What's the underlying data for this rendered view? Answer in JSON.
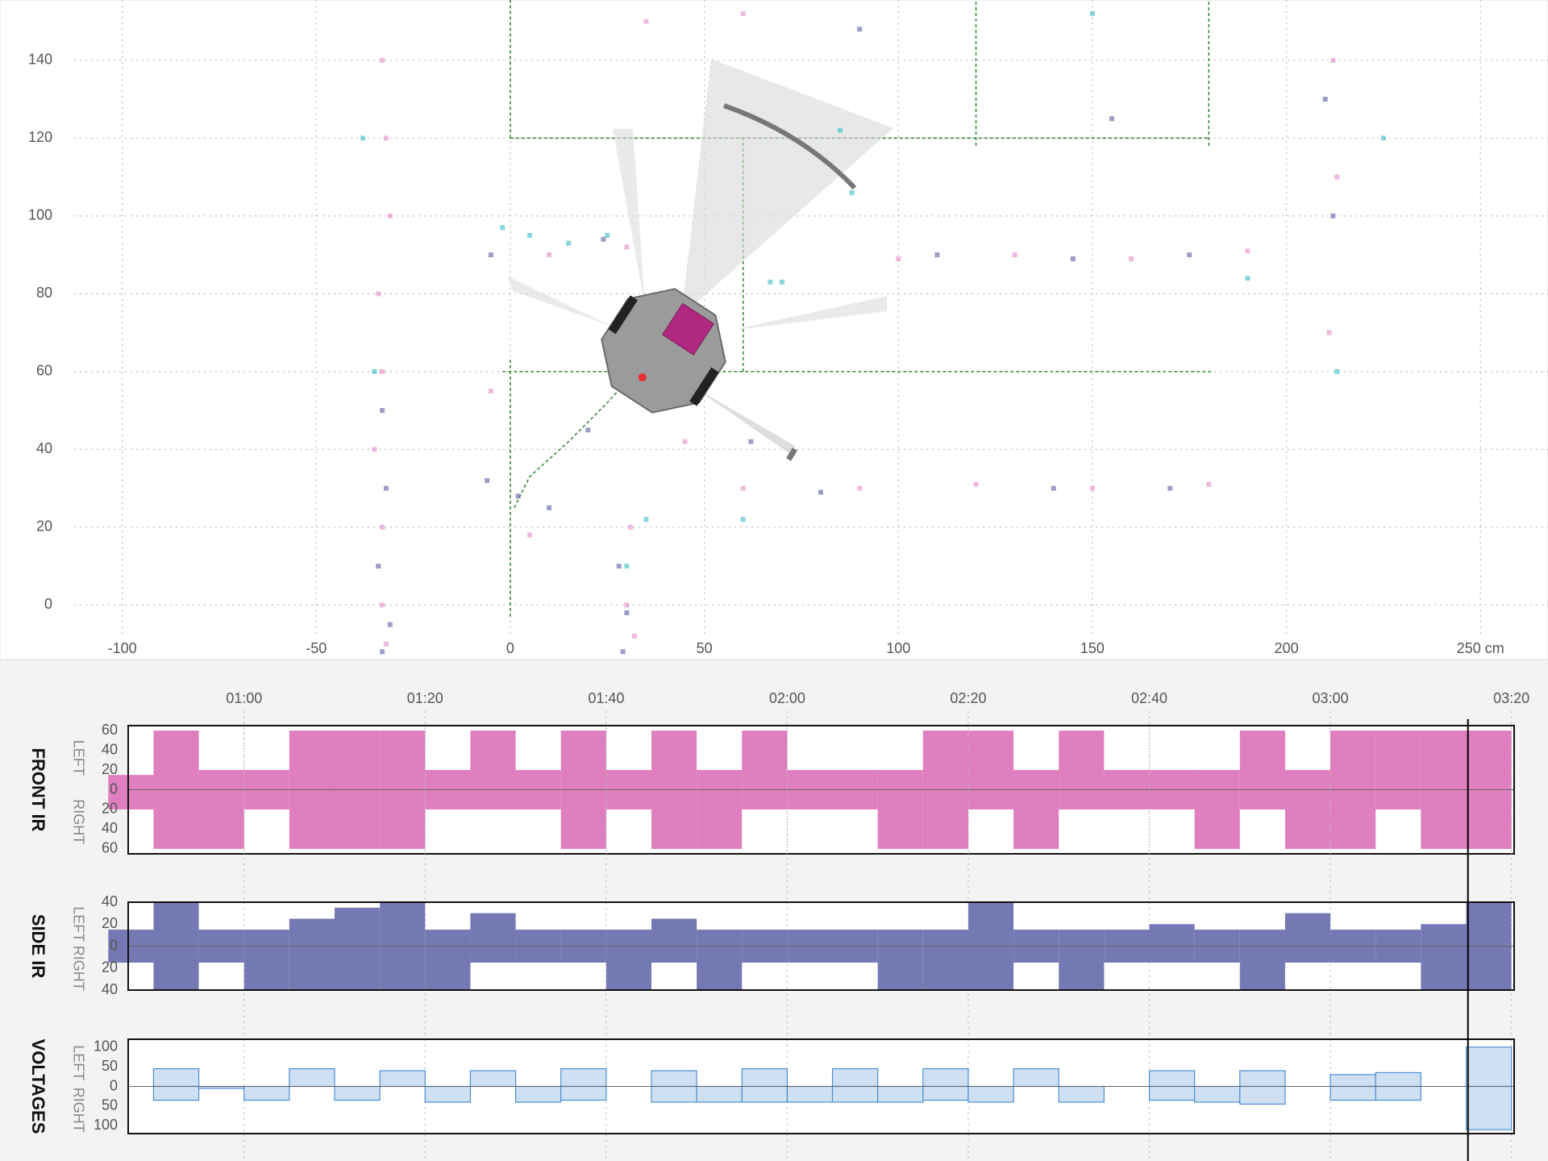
{
  "chart_data": [
    {
      "type": "scatter",
      "xlim": [
        -131.5,
        267.4
      ],
      "ylim": [
        -14,
        155.5
      ],
      "xticks": [
        -100,
        -50,
        0,
        50,
        100,
        150,
        200,
        {
          "value": 250,
          "label": "250 cm"
        }
      ],
      "yticks": [
        0,
        20,
        40,
        60,
        80,
        100,
        120,
        140
      ],
      "grid": true,
      "series": [
        {
          "color": "#e07fbf",
          "x": [
            -33,
            -32,
            -31,
            -34,
            -33,
            -35,
            -33,
            -33,
            -32,
            31,
            30,
            32,
            60,
            90,
            120,
            150,
            180,
            100,
            130,
            160,
            190,
            212,
            213,
            211,
            30,
            10,
            35,
            60,
            -5,
            45,
            5
          ],
          "y": [
            140,
            120,
            100,
            80,
            60,
            40,
            20,
            0,
            -10,
            20,
            0,
            -8,
            30,
            30,
            31,
            30,
            31,
            89,
            90,
            89,
            91,
            140,
            110,
            70,
            92,
            90,
            150,
            152,
            55,
            42,
            18
          ]
        },
        {
          "color": "#4d4f9a",
          "x": [
            -33,
            -32,
            -34,
            -31,
            -33,
            28,
            30,
            29,
            -6,
            2,
            10,
            20,
            80,
            140,
            170,
            110,
            145,
            175,
            210,
            212,
            155,
            24,
            90,
            -5,
            62
          ],
          "y": [
            50,
            30,
            10,
            -5,
            -12,
            10,
            -2,
            -12,
            32,
            28,
            25,
            45,
            29,
            30,
            30,
            90,
            89,
            90,
            130,
            100,
            125,
            94,
            148,
            90,
            42
          ]
        },
        {
          "color": "#24b6c0",
          "x": [
            -2,
            5,
            15,
            25,
            -35,
            -38,
            67,
            70,
            88,
            85,
            30,
            40,
            150,
            213,
            225,
            190,
            60,
            35
          ],
          "y": [
            97,
            95,
            93,
            95,
            60,
            120,
            83,
            83,
            106,
            122,
            10,
            55,
            152,
            60,
            120,
            84,
            22,
            22
          ]
        }
      ],
      "walls": [
        {
          "color": "#3a8a3a",
          "x": [
            0,
            0
          ],
          "y": [
            -3,
            63
          ]
        },
        {
          "color": "#3a8a3a",
          "x": [
            -2,
            181
          ],
          "y": [
            60,
            60
          ]
        },
        {
          "color": "#3a8a3a",
          "x": [
            60,
            60
          ],
          "y": [
            60,
            120
          ]
        },
        {
          "color": "#3a8a3a",
          "x": [
            0,
            180
          ],
          "y": [
            120,
            120
          ]
        },
        {
          "color": "#3a8a3a",
          "x": [
            0,
            0
          ],
          "y": [
            120,
            156
          ]
        },
        {
          "color": "#3a8a3a",
          "x": [
            120,
            120
          ],
          "y": [
            118,
            156
          ]
        },
        {
          "color": "#3a8a3a",
          "x": [
            180,
            180
          ],
          "y": [
            118,
            156
          ]
        },
        {
          "color": "#3a8a3a",
          "x": [
            1,
            5,
            15,
            25,
            34
          ],
          "y": [
            25,
            33,
            42,
            52,
            62
          ]
        }
      ]
    },
    {
      "type": "bars",
      "title": "FRONT IR",
      "xlim": [
        47.2,
        200.3
      ],
      "ylim": [
        -65,
        65
      ],
      "xticks": [
        {
          "value": 60,
          "label": "01:00"
        },
        {
          "value": 80,
          "label": "01:20"
        },
        {
          "value": 100,
          "label": "01:40"
        },
        {
          "value": 120,
          "label": "02:00"
        },
        {
          "value": 140,
          "label": "02:20"
        },
        {
          "value": 160,
          "label": "02:40"
        },
        {
          "value": 180,
          "label": "03:00"
        },
        {
          "value": 200,
          "label": "03:20"
        }
      ],
      "yticks": [
        60,
        40,
        20,
        0,
        {
          "value": -20,
          "label": "20"
        },
        {
          "value": -40,
          "label": "40"
        },
        {
          "value": -60,
          "label": "60"
        }
      ],
      "cursor": 195.2,
      "x": [
        47.5,
        52.5,
        57.5,
        62.5,
        67.5,
        72.5,
        77.5,
        82.5,
        87.5,
        92.5,
        97.5,
        102.5,
        107.5,
        112.5,
        117.5,
        122.5,
        127.5,
        132.5,
        137.5,
        142.5,
        147.5,
        152.5,
        157.5,
        162.5,
        167.5,
        172.5,
        177.5,
        182.5,
        187.5,
        192.5,
        197.5
      ],
      "series": [
        {
          "name": "LEFT",
          "color": "#df7fbf",
          "values": [
            15,
            60,
            20,
            20,
            60,
            60,
            60,
            20,
            60,
            20,
            60,
            20,
            60,
            20,
            60,
            20,
            20,
            20,
            60,
            60,
            20,
            60,
            20,
            20,
            20,
            60,
            20,
            60,
            60,
            60,
            60
          ]
        },
        {
          "name": "RIGHT",
          "color": "#df7fbf",
          "values": [
            -20,
            -60,
            -60,
            -20,
            -60,
            -60,
            -60,
            -20,
            -20,
            -20,
            -60,
            -20,
            -60,
            -60,
            -20,
            -20,
            -20,
            -60,
            -60,
            -20,
            -60,
            -20,
            -20,
            -20,
            -60,
            -20,
            -60,
            -60,
            -20,
            -60,
            -60
          ]
        }
      ]
    },
    {
      "type": "bars",
      "title": "SIDE IR",
      "xlim": [
        47.2,
        200.3
      ],
      "ylim": [
        -40,
        40
      ],
      "yticks": [
        40,
        20,
        0,
        {
          "value": -20,
          "label": "20"
        },
        {
          "value": -40,
          "label": "40"
        }
      ],
      "x": [
        47.5,
        52.5,
        57.5,
        62.5,
        67.5,
        72.5,
        77.5,
        82.5,
        87.5,
        92.5,
        97.5,
        102.5,
        107.5,
        112.5,
        117.5,
        122.5,
        127.5,
        132.5,
        137.5,
        142.5,
        147.5,
        152.5,
        157.5,
        162.5,
        167.5,
        172.5,
        177.5,
        182.5,
        187.5,
        192.5,
        197.5
      ],
      "series": [
        {
          "name": "LEFT",
          "color": "#7479b3",
          "values": [
            15,
            40,
            15,
            15,
            25,
            35,
            40,
            15,
            30,
            15,
            15,
            15,
            25,
            15,
            15,
            15,
            15,
            15,
            15,
            40,
            15,
            15,
            15,
            20,
            15,
            15,
            30,
            15,
            15,
            20,
            40
          ]
        },
        {
          "name": "RIGHT",
          "color": "#7479b3",
          "values": [
            -15,
            -40,
            -15,
            -40,
            -40,
            -40,
            -40,
            -40,
            -15,
            -15,
            -15,
            -40,
            -15,
            -40,
            -15,
            -15,
            -15,
            -40,
            -40,
            -40,
            -15,
            -40,
            -15,
            -15,
            -15,
            -40,
            -15,
            -15,
            -15,
            -40,
            -40
          ]
        }
      ]
    },
    {
      "type": "bars",
      "title": "VOLTAGES",
      "xlim": [
        47.2,
        200.3
      ],
      "ylim": [
        -120,
        120
      ],
      "yticks": [
        100,
        50,
        0,
        {
          "value": -50,
          "label": "50"
        },
        {
          "value": -100,
          "label": "100"
        }
      ],
      "x": [
        47.5,
        52.5,
        57.5,
        62.5,
        67.5,
        72.5,
        77.5,
        82.5,
        87.5,
        92.5,
        97.5,
        102.5,
        107.5,
        112.5,
        117.5,
        122.5,
        127.5,
        132.5,
        137.5,
        142.5,
        147.5,
        152.5,
        157.5,
        162.5,
        167.5,
        172.5,
        177.5,
        182.5,
        187.5,
        192.5,
        197.5
      ],
      "series": [
        {
          "name": "LEFT",
          "color": "#4a8fd0",
          "values": [
            0,
            45,
            0,
            0,
            45,
            0,
            40,
            0,
            40,
            0,
            45,
            0,
            40,
            0,
            45,
            0,
            45,
            0,
            45,
            0,
            45,
            0,
            0,
            40,
            0,
            40,
            0,
            30,
            35,
            0,
            100
          ]
        },
        {
          "name": "RIGHT",
          "color": "#4a8fd0",
          "values": [
            0,
            -35,
            -5,
            -35,
            0,
            -35,
            0,
            -40,
            0,
            -40,
            -35,
            0,
            -40,
            -40,
            -40,
            -40,
            -40,
            -40,
            -35,
            -40,
            0,
            -40,
            0,
            -35,
            -40,
            -45,
            0,
            -35,
            -35,
            0,
            -110
          ]
        }
      ]
    }
  ]
}
